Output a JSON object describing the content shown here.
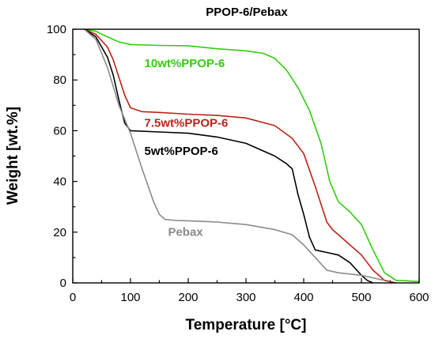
{
  "chart_data": {
    "type": "line",
    "title": "PPOP-6/Pebax",
    "xlabel": "Temperature [°C]",
    "ylabel": "Weight [wt.%]",
    "xlim": [
      0,
      600
    ],
    "ylim": [
      0,
      100
    ],
    "xticks": [
      0,
      100,
      200,
      300,
      400,
      500,
      600
    ],
    "yticks": [
      0,
      20,
      40,
      60,
      80,
      100
    ],
    "grid": false,
    "series": [
      {
        "name": "10wt%PPOP-6",
        "color": "#33cc11",
        "x": [
          20,
          40,
          60,
          80,
          100,
          150,
          200,
          250,
          300,
          330,
          350,
          370,
          390,
          410,
          430,
          445,
          460,
          480,
          500,
          520,
          540,
          560,
          580,
          600
        ],
        "y": [
          100,
          99.2,
          97,
          95,
          94,
          93.6,
          93.5,
          92.3,
          91.5,
          90.5,
          88.5,
          84,
          77,
          68,
          55,
          40,
          32,
          28,
          23,
          13,
          4,
          1,
          0.8,
          0.5
        ]
      },
      {
        "name": "7.5wt%PPOP-6",
        "color": "#b82418",
        "x": [
          20,
          40,
          60,
          70,
          80,
          90,
          100,
          120,
          150,
          200,
          250,
          300,
          350,
          380,
          400,
          420,
          440,
          450,
          460,
          480,
          500,
          520,
          540,
          560
        ],
        "y": [
          100,
          98,
          93,
          88,
          81,
          74,
          69,
          67.5,
          67.2,
          66.5,
          66,
          65,
          62,
          57,
          51,
          38,
          24,
          21,
          19,
          15,
          11,
          5,
          1,
          0
        ]
      },
      {
        "name": "5wt%PPOP-6",
        "color": "#000000",
        "x": [
          20,
          40,
          60,
          70,
          80,
          90,
          100,
          150,
          200,
          250,
          300,
          350,
          370,
          380,
          390,
          400,
          410,
          420,
          440,
          460,
          480,
          500,
          510,
          520
        ],
        "y": [
          100,
          97,
          89,
          82,
          72,
          63,
          60,
          59.5,
          59,
          57.5,
          55,
          50,
          47,
          45,
          35,
          27,
          18,
          13,
          12,
          11,
          8,
          3,
          1,
          0
        ]
      },
      {
        "name": "Pebax",
        "color": "#8a8a8a",
        "x": [
          20,
          40,
          60,
          80,
          100,
          120,
          140,
          150,
          160,
          180,
          200,
          250,
          300,
          350,
          380,
          400,
          420,
          440,
          460,
          480,
          500,
          520,
          540
        ],
        "y": [
          100,
          96,
          85,
          70,
          59,
          45,
          32,
          27,
          25,
          24.6,
          24.5,
          24,
          23,
          21,
          19,
          15,
          10,
          5,
          4,
          3.5,
          3,
          2,
          1
        ]
      }
    ],
    "annotations": [
      {
        "text": "10wt%PPOP-6",
        "color": "#33cc11",
        "x": 124,
        "y": 85
      },
      {
        "text": "7.5wt%PPOP-6",
        "color": "#b82418",
        "x": 124,
        "y": 61.5
      },
      {
        "text": "5wt%PPOP-6",
        "color": "#000000",
        "x": 124,
        "y": 50.5
      },
      {
        "text": "Pebax",
        "color": "#8a8a8a",
        "x": 165,
        "y": 18.5
      }
    ]
  }
}
